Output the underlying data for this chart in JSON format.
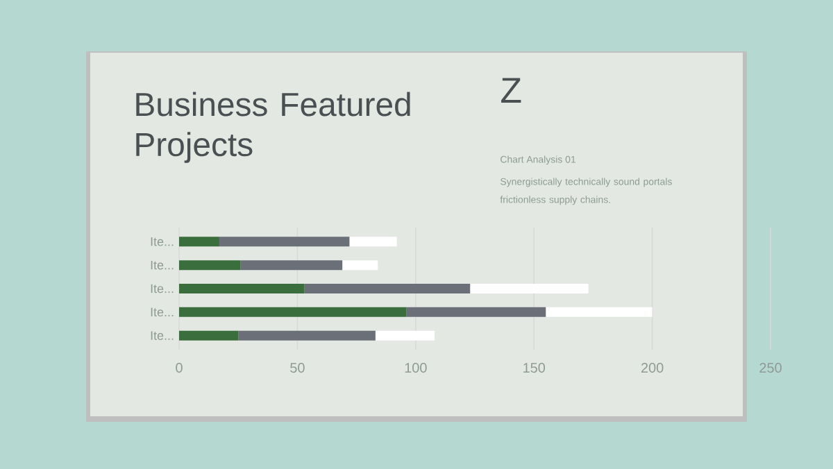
{
  "chart_data": {
    "type": "bar",
    "orientation": "horizontal",
    "stacked": true,
    "title": "Business Featured Projects",
    "annotations": [
      "Z",
      "Chart Analysis 01",
      "Synergistically technically sound portals frictionless supply chains."
    ],
    "categories": [
      "Ite...",
      "Ite...",
      "Ite...",
      "Ite...",
      "Ite..."
    ],
    "series": [
      {
        "color": "#3a6e3c",
        "values": [
          17,
          26,
          53,
          96,
          25
        ]
      },
      {
        "color": "#6b6f78",
        "values": [
          55,
          43,
          70,
          59,
          58
        ]
      },
      {
        "color": "#ffffff",
        "values": [
          20,
          15,
          50,
          45,
          25
        ]
      }
    ],
    "xlim": [
      0,
      250
    ],
    "xticks": [
      0,
      50,
      100,
      150,
      200,
      250
    ],
    "grid": "x"
  }
}
